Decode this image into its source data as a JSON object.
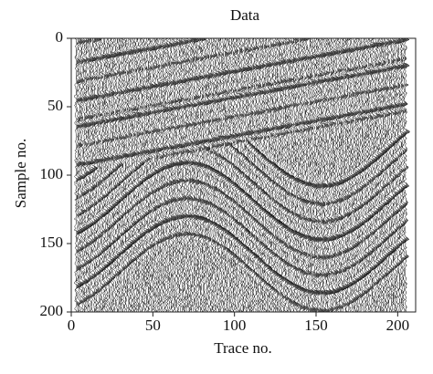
{
  "chart_data": {
    "type": "wiggle",
    "title": "Data",
    "x_label": "Trace no.",
    "y_label": "Sample no.",
    "xlim": [
      0,
      211
    ],
    "ylim": [
      200,
      0
    ],
    "xticks": [
      0,
      50,
      100,
      150,
      200
    ],
    "yticks": [
      0,
      50,
      100,
      150,
      200
    ]
  }
}
